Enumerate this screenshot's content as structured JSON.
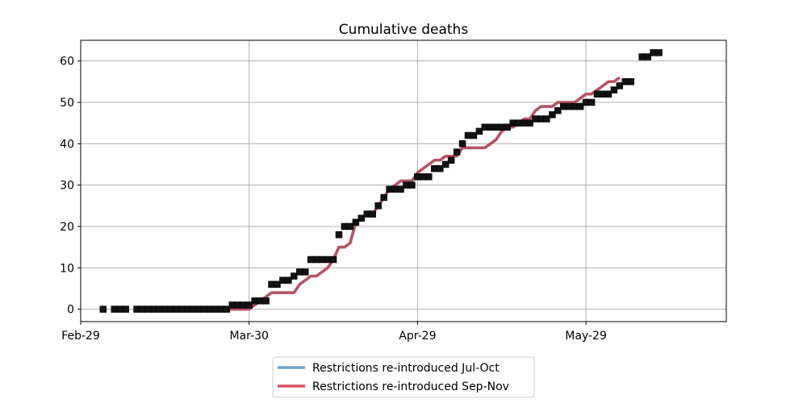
{
  "chart_data": {
    "type": "line",
    "title": "Cumulative deaths",
    "xlabel": "",
    "ylabel": "",
    "x_axis_type": "date",
    "xlim": [
      "2020-02-29",
      "2020-06-23"
    ],
    "ylim": [
      -3,
      65
    ],
    "x_ticks": [
      {
        "date": "2020-02-29",
        "label": "Feb-29"
      },
      {
        "date": "2020-03-30",
        "label": "Mar-30"
      },
      {
        "date": "2020-04-29",
        "label": "Apr-29"
      },
      {
        "date": "2020-05-29",
        "label": "May-29"
      }
    ],
    "y_ticks": [
      0,
      10,
      20,
      30,
      40,
      50,
      60
    ],
    "grid": true,
    "legend_placement": "below",
    "observed": {
      "marker": "square",
      "color": "#111111",
      "points": [
        [
          "2020-03-04",
          0
        ],
        [
          "2020-03-06",
          0
        ],
        [
          "2020-03-07",
          0
        ],
        [
          "2020-03-08",
          0
        ],
        [
          "2020-03-10",
          0
        ],
        [
          "2020-03-11",
          0
        ],
        [
          "2020-03-12",
          0
        ],
        [
          "2020-03-13",
          0
        ],
        [
          "2020-03-14",
          0
        ],
        [
          "2020-03-15",
          0
        ],
        [
          "2020-03-16",
          0
        ],
        [
          "2020-03-17",
          0
        ],
        [
          "2020-03-18",
          0
        ],
        [
          "2020-03-19",
          0
        ],
        [
          "2020-03-20",
          0
        ],
        [
          "2020-03-21",
          0
        ],
        [
          "2020-03-22",
          0
        ],
        [
          "2020-03-23",
          0
        ],
        [
          "2020-03-24",
          0
        ],
        [
          "2020-03-25",
          0
        ],
        [
          "2020-03-26",
          0
        ],
        [
          "2020-03-27",
          1
        ],
        [
          "2020-03-28",
          1
        ],
        [
          "2020-03-29",
          1
        ],
        [
          "2020-03-30",
          1
        ],
        [
          "2020-03-31",
          2
        ],
        [
          "2020-04-01",
          2
        ],
        [
          "2020-04-02",
          2
        ],
        [
          "2020-04-03",
          6
        ],
        [
          "2020-04-04",
          6
        ],
        [
          "2020-04-05",
          7
        ],
        [
          "2020-04-06",
          7
        ],
        [
          "2020-04-07",
          8
        ],
        [
          "2020-04-08",
          9
        ],
        [
          "2020-04-09",
          9
        ],
        [
          "2020-04-10",
          12
        ],
        [
          "2020-04-11",
          12
        ],
        [
          "2020-04-12",
          12
        ],
        [
          "2020-04-13",
          12
        ],
        [
          "2020-04-14",
          12
        ],
        [
          "2020-04-15",
          18
        ],
        [
          "2020-04-16",
          20
        ],
        [
          "2020-04-17",
          20
        ],
        [
          "2020-04-18",
          21
        ],
        [
          "2020-04-19",
          22
        ],
        [
          "2020-04-20",
          23
        ],
        [
          "2020-04-21",
          23
        ],
        [
          "2020-04-22",
          25
        ],
        [
          "2020-04-23",
          27
        ],
        [
          "2020-04-24",
          29
        ],
        [
          "2020-04-25",
          29
        ],
        [
          "2020-04-26",
          29
        ],
        [
          "2020-04-27",
          30
        ],
        [
          "2020-04-28",
          30
        ],
        [
          "2020-04-29",
          32
        ],
        [
          "2020-04-30",
          32
        ],
        [
          "2020-05-01",
          32
        ],
        [
          "2020-05-02",
          34
        ],
        [
          "2020-05-03",
          34
        ],
        [
          "2020-05-04",
          35
        ],
        [
          "2020-05-05",
          36
        ],
        [
          "2020-05-06",
          38
        ],
        [
          "2020-05-07",
          40
        ],
        [
          "2020-05-08",
          42
        ],
        [
          "2020-05-09",
          42
        ],
        [
          "2020-05-10",
          43
        ],
        [
          "2020-05-11",
          44
        ],
        [
          "2020-05-12",
          44
        ],
        [
          "2020-05-13",
          44
        ],
        [
          "2020-05-14",
          44
        ],
        [
          "2020-05-15",
          44
        ],
        [
          "2020-05-16",
          45
        ],
        [
          "2020-05-17",
          45
        ],
        [
          "2020-05-18",
          45
        ],
        [
          "2020-05-19",
          45
        ],
        [
          "2020-05-20",
          46
        ],
        [
          "2020-05-21",
          46
        ],
        [
          "2020-05-22",
          46
        ],
        [
          "2020-05-23",
          47
        ],
        [
          "2020-05-24",
          48
        ],
        [
          "2020-05-25",
          49
        ],
        [
          "2020-05-26",
          49
        ],
        [
          "2020-05-27",
          49
        ],
        [
          "2020-05-28",
          49
        ],
        [
          "2020-05-29",
          50
        ],
        [
          "2020-05-30",
          50
        ],
        [
          "2020-05-31",
          52
        ],
        [
          "2020-06-01",
          52
        ],
        [
          "2020-06-02",
          52
        ],
        [
          "2020-06-03",
          53
        ],
        [
          "2020-06-04",
          54
        ],
        [
          "2020-06-05",
          55
        ],
        [
          "2020-06-06",
          55
        ],
        [
          "2020-06-08",
          61
        ],
        [
          "2020-06-09",
          61
        ],
        [
          "2020-06-10",
          62
        ],
        [
          "2020-06-11",
          62
        ]
      ]
    },
    "series": [
      {
        "name": "Restrictions re-introduced Jul-Oct",
        "color": "#6fa3cc",
        "points": [
          [
            "2020-03-25",
            0
          ],
          [
            "2020-03-26",
            0
          ],
          [
            "2020-03-27",
            0
          ],
          [
            "2020-03-28",
            0
          ],
          [
            "2020-03-29",
            0
          ],
          [
            "2020-03-30",
            0
          ],
          [
            "2020-03-31",
            1
          ],
          [
            "2020-04-01",
            2
          ],
          [
            "2020-04-02",
            3
          ],
          [
            "2020-04-03",
            4
          ],
          [
            "2020-04-04",
            4
          ],
          [
            "2020-04-05",
            4
          ],
          [
            "2020-04-06",
            4
          ],
          [
            "2020-04-07",
            4
          ],
          [
            "2020-04-08",
            6
          ],
          [
            "2020-04-09",
            7
          ],
          [
            "2020-04-10",
            8
          ],
          [
            "2020-04-11",
            8
          ],
          [
            "2020-04-12",
            9
          ],
          [
            "2020-04-13",
            10
          ],
          [
            "2020-04-14",
            12
          ],
          [
            "2020-04-15",
            15
          ],
          [
            "2020-04-16",
            15
          ],
          [
            "2020-04-17",
            16
          ],
          [
            "2020-04-18",
            21
          ],
          [
            "2020-04-19",
            22
          ],
          [
            "2020-04-20",
            23
          ],
          [
            "2020-04-21",
            23
          ],
          [
            "2020-04-22",
            25
          ],
          [
            "2020-04-23",
            27
          ],
          [
            "2020-04-24",
            29
          ],
          [
            "2020-04-25",
            30
          ],
          [
            "2020-04-26",
            31
          ],
          [
            "2020-04-27",
            31
          ],
          [
            "2020-04-28",
            31
          ],
          [
            "2020-04-29",
            33
          ],
          [
            "2020-04-30",
            34
          ],
          [
            "2020-05-01",
            35
          ],
          [
            "2020-05-02",
            36
          ],
          [
            "2020-05-03",
            36
          ],
          [
            "2020-05-04",
            37
          ],
          [
            "2020-05-05",
            37
          ],
          [
            "2020-05-06",
            37
          ],
          [
            "2020-05-07",
            39
          ],
          [
            "2020-05-08",
            39
          ],
          [
            "2020-05-09",
            39
          ],
          [
            "2020-05-10",
            39
          ],
          [
            "2020-05-11",
            39
          ],
          [
            "2020-05-12",
            40
          ],
          [
            "2020-05-13",
            41
          ],
          [
            "2020-05-14",
            43
          ],
          [
            "2020-05-15",
            44
          ],
          [
            "2020-05-16",
            44
          ],
          [
            "2020-05-17",
            45
          ],
          [
            "2020-05-18",
            46
          ],
          [
            "2020-05-19",
            46
          ],
          [
            "2020-05-20",
            48
          ],
          [
            "2020-05-21",
            49
          ],
          [
            "2020-05-22",
            49
          ],
          [
            "2020-05-23",
            49
          ],
          [
            "2020-05-24",
            50
          ],
          [
            "2020-05-25",
            50
          ],
          [
            "2020-05-26",
            50
          ],
          [
            "2020-05-27",
            50
          ],
          [
            "2020-05-28",
            51
          ],
          [
            "2020-05-29",
            52
          ],
          [
            "2020-05-30",
            52
          ],
          [
            "2020-05-31",
            53
          ],
          [
            "2020-06-01",
            54
          ],
          [
            "2020-06-02",
            55
          ],
          [
            "2020-06-03",
            55
          ],
          [
            "2020-06-04",
            56
          ]
        ]
      },
      {
        "name": "Restrictions re-introduced Sep-Nov",
        "color": "#d9525e",
        "points": [
          [
            "2020-03-25",
            0
          ],
          [
            "2020-03-26",
            0
          ],
          [
            "2020-03-27",
            0
          ],
          [
            "2020-03-28",
            0
          ],
          [
            "2020-03-29",
            0
          ],
          [
            "2020-03-30",
            0
          ],
          [
            "2020-03-31",
            1
          ],
          [
            "2020-04-01",
            2
          ],
          [
            "2020-04-02",
            3
          ],
          [
            "2020-04-03",
            4
          ],
          [
            "2020-04-04",
            4
          ],
          [
            "2020-04-05",
            4
          ],
          [
            "2020-04-06",
            4
          ],
          [
            "2020-04-07",
            4
          ],
          [
            "2020-04-08",
            6
          ],
          [
            "2020-04-09",
            7
          ],
          [
            "2020-04-10",
            8
          ],
          [
            "2020-04-11",
            8
          ],
          [
            "2020-04-12",
            9
          ],
          [
            "2020-04-13",
            10
          ],
          [
            "2020-04-14",
            12
          ],
          [
            "2020-04-15",
            15
          ],
          [
            "2020-04-16",
            15
          ],
          [
            "2020-04-17",
            16
          ],
          [
            "2020-04-18",
            21
          ],
          [
            "2020-04-19",
            22
          ],
          [
            "2020-04-20",
            23
          ],
          [
            "2020-04-21",
            23
          ],
          [
            "2020-04-22",
            25
          ],
          [
            "2020-04-23",
            27
          ],
          [
            "2020-04-24",
            29
          ],
          [
            "2020-04-25",
            30
          ],
          [
            "2020-04-26",
            31
          ],
          [
            "2020-04-27",
            31
          ],
          [
            "2020-04-28",
            31
          ],
          [
            "2020-04-29",
            33
          ],
          [
            "2020-04-30",
            34
          ],
          [
            "2020-05-01",
            35
          ],
          [
            "2020-05-02",
            36
          ],
          [
            "2020-05-03",
            36
          ],
          [
            "2020-05-04",
            37
          ],
          [
            "2020-05-05",
            37
          ],
          [
            "2020-05-06",
            37
          ],
          [
            "2020-05-07",
            39
          ],
          [
            "2020-05-08",
            39
          ],
          [
            "2020-05-09",
            39
          ],
          [
            "2020-05-10",
            39
          ],
          [
            "2020-05-11",
            39
          ],
          [
            "2020-05-12",
            40
          ],
          [
            "2020-05-13",
            41
          ],
          [
            "2020-05-14",
            43
          ],
          [
            "2020-05-15",
            44
          ],
          [
            "2020-05-16",
            44
          ],
          [
            "2020-05-17",
            45
          ],
          [
            "2020-05-18",
            46
          ],
          [
            "2020-05-19",
            46
          ],
          [
            "2020-05-20",
            48
          ],
          [
            "2020-05-21",
            49
          ],
          [
            "2020-05-22",
            49
          ],
          [
            "2020-05-23",
            49
          ],
          [
            "2020-05-24",
            50
          ],
          [
            "2020-05-25",
            50
          ],
          [
            "2020-05-26",
            50
          ],
          [
            "2020-05-27",
            50
          ],
          [
            "2020-05-28",
            51
          ],
          [
            "2020-05-29",
            52
          ],
          [
            "2020-05-30",
            52
          ],
          [
            "2020-05-31",
            53
          ],
          [
            "2020-06-01",
            54
          ],
          [
            "2020-06-02",
            55
          ],
          [
            "2020-06-03",
            55
          ],
          [
            "2020-06-04",
            56
          ]
        ]
      }
    ]
  }
}
